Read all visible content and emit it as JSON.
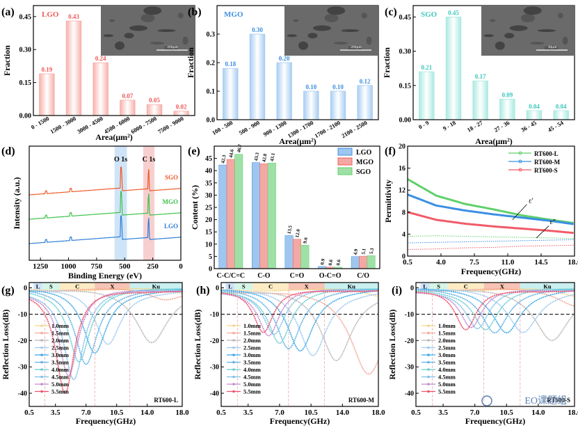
{
  "colors": {
    "lgo_red": "#f05a5a",
    "lgo_red_light": "#f7b0aa",
    "mgo_blue": "#3d8fe0",
    "mgo_blue_light": "#a8cdf2",
    "sgo_cyan": "#3cc9bd",
    "sgo_cyan_light": "#a9eae0",
    "rt600_l": "#5fd06a",
    "rt600_m": "#3b8fe3",
    "rt600_s": "#f05a68",
    "band_l": "#cfe3fb",
    "band_s": "#d6f5e7",
    "band_c": "#fdebc4",
    "band_x": "#f7c3b4",
    "band_ku": "#c9efef"
  },
  "chart_data": [
    {
      "panel": "(a)",
      "type": "bar",
      "sample": "LGO",
      "categories": [
        "0 - 1500",
        "1500 - 3000",
        "3000 - 4500",
        "4500 - 6000",
        "6000 - 7500",
        "7500 - 9000"
      ],
      "values": [
        0.19,
        0.43,
        0.24,
        0.07,
        0.05,
        0.02
      ],
      "labels": [
        "0.19",
        "0.43",
        "0.24",
        "0.07",
        "0.05",
        "0.02"
      ],
      "xlabel": "Area(μm²)",
      "ylabel": "Fraction",
      "yticks": [
        "0.00",
        "0.15",
        "0.30",
        "0.45"
      ],
      "ylim": [
        0,
        0.5
      ],
      "inset_scale": "200μm"
    },
    {
      "panel": "(b)",
      "type": "bar",
      "sample": "MGO",
      "categories": [
        "100 - 500",
        "500 - 900",
        "900 - 1300",
        "1300 - 1700",
        "1700 - 2100",
        "2100 - 2500"
      ],
      "values": [
        0.18,
        0.3,
        0.2,
        0.1,
        0.1,
        0.12
      ],
      "labels": [
        "0.18",
        "0.30",
        "0.20",
        "0.10",
        "0.10",
        "0.12"
      ],
      "xlabel": "Area(μm²)",
      "ylabel": "Fraction",
      "yticks": [
        "0.0",
        "0.1",
        "0.2",
        "0.3"
      ],
      "ylim": [
        0,
        0.4
      ],
      "inset_scale": "200μm"
    },
    {
      "panel": "(c)",
      "type": "bar",
      "sample": "SGO",
      "categories": [
        "0 - 9",
        "9 - 18",
        "18 - 27",
        "27 - 36",
        "36 - 45",
        "45 - 54"
      ],
      "values": [
        0.21,
        0.45,
        0.17,
        0.09,
        0.04,
        0.04
      ],
      "labels": [
        "0.21",
        "0.45",
        "0.17",
        "0.09",
        "0.04",
        "0.04"
      ],
      "xlabel": "Area(μm²)",
      "ylabel": "Fraction",
      "yticks": [
        "0.00",
        "0.15",
        "0.30",
        "0.45"
      ],
      "ylim": [
        0,
        0.5
      ],
      "inset_scale": "30μm"
    },
    {
      "panel": "(d)",
      "type": "line",
      "xlabel": "Binding Energy (eV)",
      "ylabel": "Intensity (a.u.)",
      "xticks": [
        "1250",
        "1000",
        "750",
        "500",
        "250",
        "0"
      ],
      "xlim": [
        1350,
        0
      ],
      "peaks": [
        "O 1s",
        "C 1s"
      ],
      "series": [
        {
          "name": "SGO",
          "color": "#f05a28"
        },
        {
          "name": "MGO",
          "color": "#3dc24a"
        },
        {
          "name": "LGO",
          "color": "#2f7fd6"
        }
      ]
    },
    {
      "panel": "(e)",
      "type": "bar",
      "categories": [
        "C-C/C=C",
        "C-O",
        "C=O",
        "O-C=O",
        "C/O"
      ],
      "series": [
        {
          "name": "LGO",
          "values": [
            42.3,
            43.3,
            13.5,
            0.9,
            4.9
          ]
        },
        {
          "name": "MGO",
          "values": [
            44.6,
            42.8,
            12.0,
            0.6,
            5.1
          ]
        },
        {
          "name": "SGO",
          "values": [
            46.7,
            43.1,
            9.6,
            0.6,
            5.3
          ]
        }
      ],
      "value_labels": [
        [
          "42.3",
          "43.3",
          "13.5",
          "0.9",
          "4.9"
        ],
        [
          "44.6",
          "42.8",
          "12.0",
          "0.6",
          "5.1"
        ],
        [
          "46.7",
          "43.1",
          "9.6",
          "0.6",
          "5.3"
        ]
      ],
      "ylabel": "Content (%)",
      "yticks": [
        "0",
        "5",
        "10",
        "15",
        "20",
        "25",
        "30",
        "35",
        "40",
        "45"
      ],
      "ylim": [
        0,
        50
      ]
    },
    {
      "panel": "(f)",
      "type": "line",
      "xlabel": "Frequency(GHz)",
      "ylabel": "Permittivity",
      "xticks": [
        "0.5",
        "4.0",
        "7.5",
        "11.0",
        "14.5",
        "18.0"
      ],
      "xlim": [
        0.5,
        18
      ],
      "yticks": [
        "0",
        "4",
        "8",
        "12",
        "16",
        "20"
      ],
      "ylim": [
        0,
        20
      ],
      "annotations": [
        "ε'",
        "ε''"
      ],
      "series": [
        {
          "name": "RT600-L",
          "eps_real": [
            14.0,
            11.0,
            9.5,
            8.5,
            7.4,
            6.6,
            6.0
          ],
          "eps_imag": [
            3.6,
            3.7,
            3.6,
            3.5,
            3.4,
            3.3,
            3.2
          ]
        },
        {
          "name": "RT600-M",
          "eps_real": [
            11.2,
            9.2,
            8.3,
            7.6,
            7.0,
            6.4,
            5.8
          ],
          "eps_imag": [
            2.4,
            2.5,
            2.6,
            2.7,
            2.8,
            2.9,
            3.0
          ]
        },
        {
          "name": "RT600-S",
          "eps_real": [
            8.0,
            6.6,
            5.9,
            5.4,
            5.0,
            4.6,
            4.2
          ],
          "eps_imag": [
            1.2,
            1.3,
            1.5,
            1.6,
            1.8,
            1.9,
            2.0
          ]
        }
      ],
      "x": [
        0.5,
        3.5,
        6.5,
        9.5,
        12.5,
        15.5,
        18.0
      ]
    },
    {
      "panel": "(g)",
      "type": "line",
      "sample": "RT600-L",
      "xlabel": "Frequency(GHz)",
      "ylabel": "Reflection Loss(dB)",
      "xticks": [
        "0.5",
        "3.5",
        "7.0",
        "10.5",
        "14.0",
        "18.0"
      ],
      "xlim": [
        0.5,
        18
      ],
      "yticks": [
        "0",
        "-10",
        "-20",
        "-30",
        "-40"
      ],
      "ylim": [
        -45,
        2
      ],
      "bands": [
        "L",
        "S",
        "C",
        "X",
        "Ku"
      ],
      "thicknesses": [
        "1.0mm",
        "1.5mm",
        "2.0mm",
        "2.5mm",
        "3.0mm",
        "3.5mm",
        "4.0mm",
        "4.5mm",
        "5.0mm",
        "5.5mm"
      ],
      "min_freq_ghz": [
        18.5,
        16.0,
        14.5,
        9.5,
        8.0,
        7.0,
        6.2,
        5.6,
        5.0,
        4.6
      ],
      "min_rl_db": [
        -2,
        -4,
        -20,
        -21,
        -24,
        -28,
        -27,
        -34,
        -33,
        -40
      ]
    },
    {
      "panel": "(h)",
      "type": "line",
      "sample": "RT600-M",
      "xlabel": "Frequency(GHz)",
      "ylabel": "Reflection Loss(dB)",
      "xticks": [
        "0.5",
        "3.5",
        "7.0",
        "10.5",
        "14.0",
        "18.0"
      ],
      "xlim": [
        0.5,
        18
      ],
      "yticks": [
        "0",
        "-10",
        "-20",
        "-30",
        "-40"
      ],
      "ylim": [
        -45,
        2
      ],
      "bands": [
        "L",
        "S",
        "C",
        "X",
        "Ku"
      ],
      "thicknesses": [
        "1.0mm",
        "1.5mm",
        "2.0mm",
        "2.5mm",
        "3.0mm",
        "3.5mm",
        "4.0mm",
        "4.5mm",
        "5.0mm",
        "5.5mm"
      ],
      "min_freq_ghz": [
        18.5,
        16.9,
        13.3,
        10.7,
        9.3,
        8.0,
        7.0,
        6.4,
        5.8,
        5.2
      ],
      "min_rl_db": [
        -3,
        -32,
        -27,
        -25,
        -23,
        -22,
        -20,
        -17,
        -18,
        -17
      ]
    },
    {
      "panel": "(i)",
      "type": "line",
      "sample": "RT600-S",
      "xlabel": "Frequency(GHz)",
      "ylabel": "Reflection Loss(dB)",
      "xticks": [
        "0.5",
        "3.5",
        "7.0",
        "10.5",
        "14.0",
        "18.0"
      ],
      "xlim": [
        0.5,
        18
      ],
      "yticks": [
        "0",
        "-10",
        "-20",
        "-30",
        "-40"
      ],
      "ylim": [
        -45,
        2
      ],
      "bands": [
        "L",
        "S",
        "C",
        "X",
        "Ku"
      ],
      "thicknesses": [
        "1.0mm",
        "1.5mm",
        "2.0mm",
        "2.5mm",
        "3.0mm",
        "3.5mm",
        "4.0mm",
        "4.5mm",
        "5.0mm",
        "5.5mm"
      ],
      "min_freq_ghz": [
        18.5,
        18.2,
        15.5,
        12.3,
        10.5,
        9.2,
        8.2,
        7.3,
        6.6,
        6.0
      ],
      "min_rl_db": [
        -3,
        -6,
        -19,
        -16,
        -16,
        -16,
        -15,
        -15,
        -15,
        -16
      ]
    }
  ],
  "watermark": "EO课题组"
}
